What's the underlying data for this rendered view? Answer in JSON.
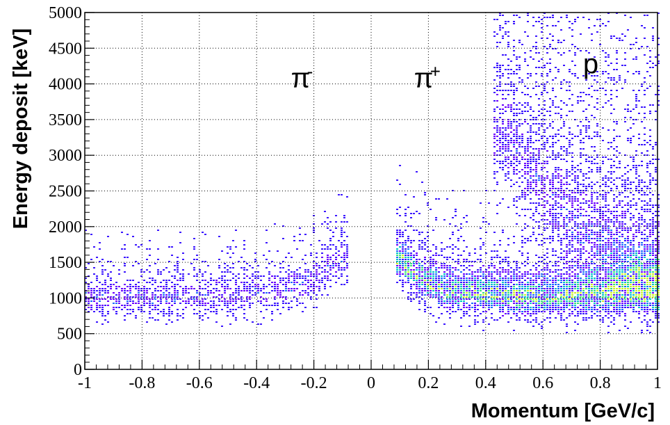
{
  "chart_data": {
    "type": "heatmap",
    "title": "",
    "xlabel": "Momentum [GeV/c]",
    "ylabel": "Energy deposit [keV]",
    "xlim": [
      -1,
      1
    ],
    "ylim": [
      0,
      5000
    ],
    "x_ticks": [
      -1,
      -0.8,
      -0.6,
      -0.4,
      -0.2,
      0,
      0.2,
      0.4,
      0.6,
      0.8,
      1
    ],
    "x_tick_labels": [
      "-1",
      "-0.8",
      "-0.6",
      "-0.4",
      "-0.2",
      "0",
      "0.2",
      "0.4",
      "0.6",
      "0.8",
      "1"
    ],
    "y_ticks": [
      0,
      500,
      1000,
      1500,
      2000,
      2500,
      3000,
      3500,
      4000,
      4500,
      5000
    ],
    "y_tick_labels": [
      "0",
      "500",
      "1000",
      "1500",
      "2000",
      "2500",
      "3000",
      "3500",
      "4000",
      "4500",
      "5000"
    ],
    "grid": true,
    "colormap": [
      "#3b16ff",
      "#6b00ff",
      "#1f6cff",
      "#00c3c8",
      "#37e07a",
      "#c8ef2a"
    ],
    "annotations": [
      {
        "base": "π",
        "sup": "-",
        "x": -0.28,
        "y": 3950
      },
      {
        "base": "π",
        "sup": "+",
        "x": 0.15,
        "y": 3950
      },
      {
        "base": "p",
        "sup": "",
        "x": 0.74,
        "y": 4150
      }
    ],
    "bands": [
      {
        "name": "pi-minus",
        "p_min": -1.0,
        "p_max": -0.08,
        "center_keV": [
          [
            -1.0,
            980
          ],
          [
            -0.6,
            1000
          ],
          [
            -0.3,
            1100
          ],
          [
            -0.2,
            1250
          ],
          [
            -0.12,
            1500
          ]
        ],
        "spread_keV": 180,
        "peak_density": 0.55
      },
      {
        "name": "pi-plus",
        "p_min": 0.08,
        "p_max": 1.0,
        "center_keV": [
          [
            0.1,
            1500
          ],
          [
            0.15,
            1300
          ],
          [
            0.25,
            1100
          ],
          [
            0.5,
            1000
          ],
          [
            1.0,
            1050
          ]
        ],
        "spread_keV": 200,
        "peak_density": 1.0
      },
      {
        "name": "proton",
        "p_min": 0.42,
        "p_max": 1.0,
        "center_keV": [
          [
            0.45,
            3300
          ],
          [
            0.55,
            2700
          ],
          [
            0.7,
            2100
          ],
          [
            0.85,
            1700
          ],
          [
            1.0,
            1400
          ]
        ],
        "spread_keV": 400,
        "peak_density": 0.5
      }
    ]
  }
}
